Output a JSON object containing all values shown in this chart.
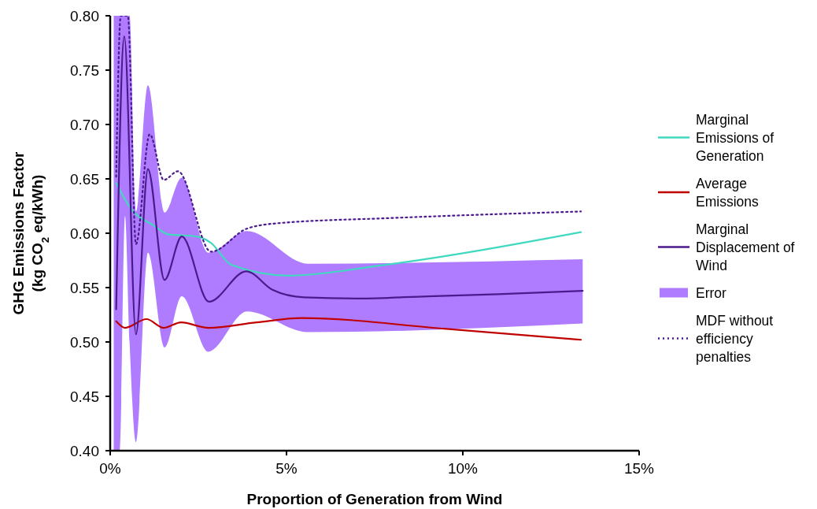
{
  "chart_data": {
    "type": "line",
    "xlabel": "Proportion of Generation from Wind",
    "ylabel": "GHG Emissions Factor\n(kg CO$_{2}$ eq/kWh)",
    "xlim": [
      0,
      15
    ],
    "xticks": [
      {
        "value": 0,
        "label": "0%"
      },
      {
        "value": 5,
        "label": "5%"
      },
      {
        "value": 10,
        "label": "10%"
      },
      {
        "value": 15,
        "label": "15%"
      }
    ],
    "ylim": [
      0.4,
      0.8
    ],
    "yticks": [
      {
        "value": 0.4,
        "label": "0.40"
      },
      {
        "value": 0.45,
        "label": "0.45"
      },
      {
        "value": 0.5,
        "label": "0.50"
      },
      {
        "value": 0.55,
        "label": "0.55"
      },
      {
        "value": 0.6,
        "label": "0.60"
      },
      {
        "value": 0.65,
        "label": "0.65"
      },
      {
        "value": 0.7,
        "label": "0.70"
      },
      {
        "value": 0.75,
        "label": "0.75"
      },
      {
        "value": 0.8,
        "label": "0.80"
      }
    ],
    "grid": false,
    "legend": "right",
    "series": [
      {
        "name": "Error",
        "type": "area",
        "color": "#b07cff",
        "x": [
          0.1,
          0.17,
          0.27,
          0.42,
          0.55,
          0.73,
          1.07,
          1.54,
          2.03,
          2.78,
          3.88,
          5.6,
          13.4
        ],
        "values": [
          null,
          null,
          null,
          null,
          null,
          null,
          null,
          null,
          null,
          null,
          null,
          null,
          null
        ],
        "lower": [
          0.4,
          0.4,
          0.4,
          0.616,
          0.5,
          0.408,
          0.582,
          0.495,
          0.542,
          0.491,
          0.528,
          0.509,
          0.517
        ],
        "upper": [
          0.8,
          0.8,
          0.8,
          0.8,
          0.8,
          0.62,
          0.736,
          0.619,
          0.651,
          0.582,
          0.602,
          0.572,
          0.576
        ]
      },
      {
        "name": "Marginal Emissions of Generation",
        "color": "#40d9c0",
        "line_style": "solid",
        "x": [
          0.17,
          0.58,
          1.24,
          1.64,
          2.46,
          2.86,
          3.43,
          5.06,
          7.59,
          13.35
        ],
        "values": [
          0.646,
          0.623,
          0.607,
          0.599,
          0.597,
          0.591,
          0.571,
          0.561,
          0.57,
          0.601
        ]
      },
      {
        "name": "Average Emissions",
        "color": "#c00000",
        "line_style": "solid",
        "x": [
          0.17,
          0.42,
          1.03,
          1.52,
          2.01,
          2.78,
          4.15,
          5.43,
          9.53,
          13.35
        ],
        "values": [
          0.519,
          0.513,
          0.521,
          0.513,
          0.518,
          0.513,
          0.518,
          0.522,
          0.512,
          0.502
        ]
      },
      {
        "name": "Marginal Displacement of Wind",
        "color": "#4b1a8c",
        "line_style": "solid",
        "x": [
          0.17,
          0.4,
          0.73,
          1.07,
          1.54,
          2.03,
          2.8,
          3.86,
          4.6,
          5.5,
          7,
          9,
          11,
          13.4
        ],
        "values": [
          0.53,
          0.781,
          0.507,
          0.659,
          0.557,
          0.597,
          0.537,
          0.565,
          0.548,
          0.541,
          0.54,
          0.542,
          0.544,
          0.547
        ]
      },
      {
        "name": "MDF without efficiency penalties",
        "color": "#4b1a8c",
        "line_style": "dotted",
        "x": [
          0.17,
          0.3,
          0.5,
          0.73,
          1.12,
          1.52,
          1.92,
          2.86,
          3.86,
          4.69,
          8.0,
          13.35
        ],
        "values": [
          0.652,
          0.8,
          0.8,
          0.59,
          0.691,
          0.649,
          0.657,
          0.583,
          0.604,
          0.609,
          0.614,
          0.62
        ]
      }
    ]
  }
}
